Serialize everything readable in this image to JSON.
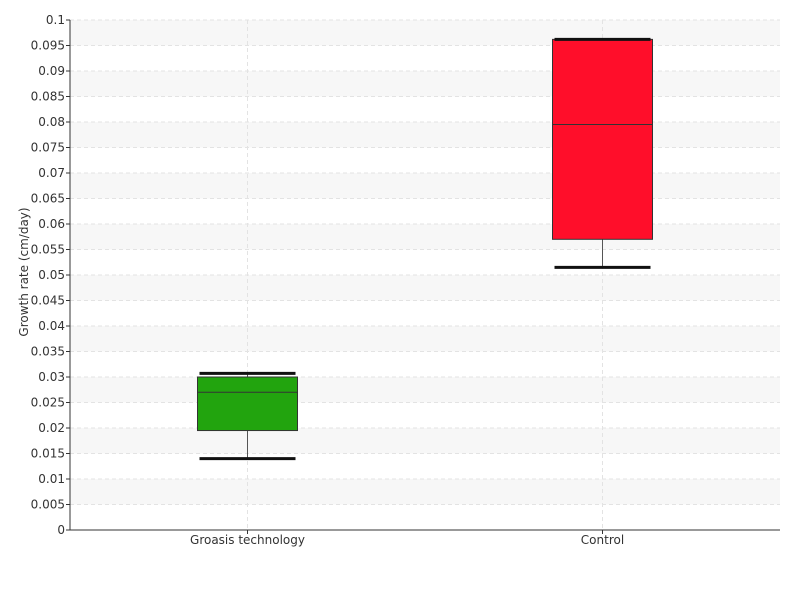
{
  "chart_data": {
    "type": "box",
    "title": "",
    "xlabel": "",
    "ylabel": "Growth rate (cm/day)",
    "ylim": [
      0,
      0.1
    ],
    "yticks": [
      "0",
      "0.005",
      "0.01",
      "0.015",
      "0.02",
      "0.025",
      "0.03",
      "0.035",
      "0.04",
      "0.045",
      "0.05",
      "0.055",
      "0.06",
      "0.065",
      "0.07",
      "0.075",
      "0.08",
      "0.085",
      "0.09",
      "0.095",
      "0.1"
    ],
    "grid": true,
    "categories": [
      "Groasis technology",
      "Control"
    ],
    "boxes": [
      {
        "category": "Groasis technology",
        "min": 0.014,
        "q1": 0.0195,
        "median": 0.027,
        "q3": 0.03,
        "max": 0.0307,
        "color": "#22a40e"
      },
      {
        "category": "Control",
        "min": 0.0515,
        "q1": 0.057,
        "median": 0.0795,
        "q3": 0.0962,
        "max": 0.0962,
        "color": "#ff0e2a"
      }
    ]
  }
}
